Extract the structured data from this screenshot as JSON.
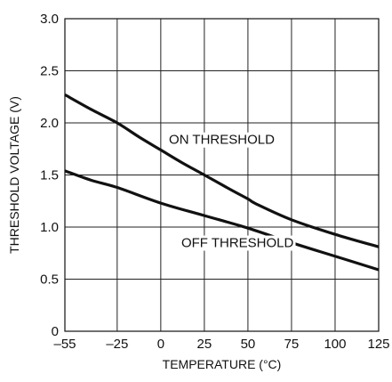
{
  "chart_data": {
    "type": "line",
    "title": "",
    "xlabel": "TEMPERATURE (°C)",
    "ylabel": "THRESHOLD VOLTAGE (V)",
    "xlim": [
      -55,
      125
    ],
    "ylim": [
      0,
      3.0
    ],
    "xticks": [
      -55,
      -25,
      0,
      25,
      50,
      75,
      100,
      125
    ],
    "xtick_labels": [
      "–55",
      "–25",
      "0",
      "25",
      "50",
      "75",
      "100",
      "125"
    ],
    "yticks": [
      0,
      0.5,
      1.0,
      1.5,
      2.0,
      2.5,
      3.0
    ],
    "ytick_labels": [
      "0",
      "0.5",
      "1.0",
      "1.5",
      "2.0",
      "2.5",
      "3.0"
    ],
    "grid": true,
    "series": [
      {
        "name": "ON THRESHOLD",
        "x": [
          -55,
          -40,
          -25,
          -12,
          0,
          12,
          25,
          40,
          50,
          55,
          75,
          100,
          125
        ],
        "y": [
          2.27,
          2.13,
          2.0,
          1.86,
          1.74,
          1.62,
          1.5,
          1.36,
          1.27,
          1.22,
          1.07,
          0.93,
          0.81
        ]
      },
      {
        "name": "OFF THRESHOLD",
        "x": [
          -55,
          -40,
          -25,
          0,
          25,
          50,
          75,
          100,
          125
        ],
        "y": [
          1.54,
          1.45,
          1.38,
          1.23,
          1.11,
          0.99,
          0.85,
          0.72,
          0.59
        ]
      }
    ],
    "annotations": [
      {
        "text": "ON THRESHOLD",
        "x": 35,
        "y": 1.84
      },
      {
        "text": "OFF THRESHOLD",
        "x": 44,
        "y": 0.85
      }
    ]
  }
}
